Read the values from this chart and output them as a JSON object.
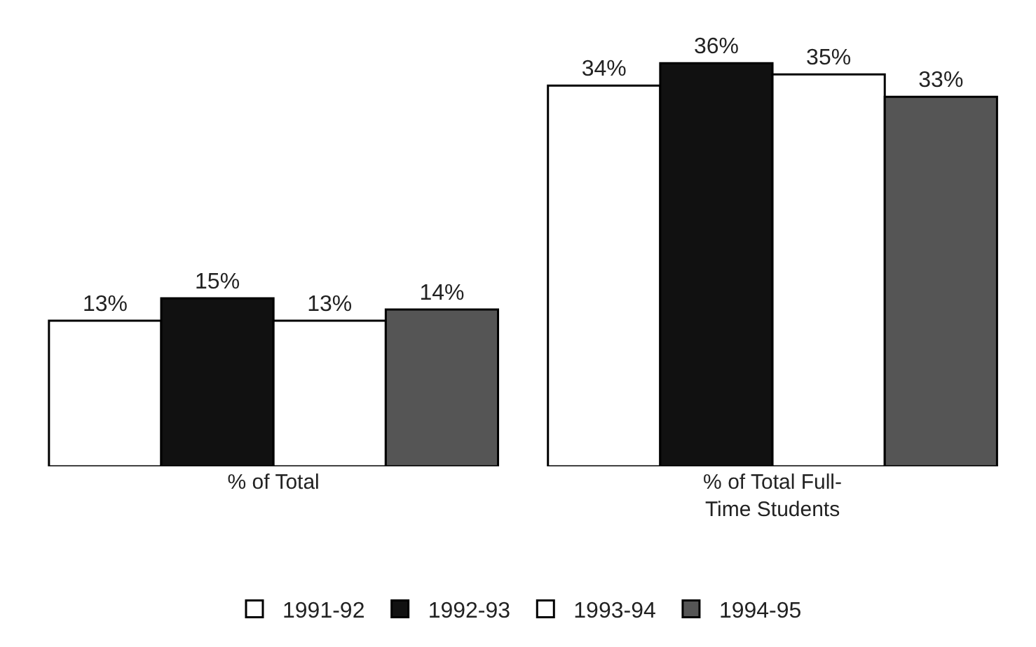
{
  "chart_data": {
    "type": "bar",
    "categories": [
      "% of Total",
      "% of Total Full-Time Students"
    ],
    "series": [
      {
        "name": "1991-92",
        "color": "#ffffff",
        "values": [
          13,
          34
        ],
        "value_labels": [
          "13%",
          "34%"
        ]
      },
      {
        "name": "1992-93",
        "color": "#111111",
        "values": [
          15,
          36
        ],
        "value_labels": [
          "15%",
          "36%"
        ]
      },
      {
        "name": "1993-94",
        "color": "#ffffff",
        "values": [
          13,
          35
        ],
        "value_labels": [
          "13%",
          "35%"
        ]
      },
      {
        "name": "1994-95",
        "color": "#555555",
        "values": [
          14,
          33
        ],
        "value_labels": [
          "14%",
          "33%"
        ]
      }
    ],
    "legend": "bottom",
    "grid": false,
    "tick_labels": "x"
  }
}
